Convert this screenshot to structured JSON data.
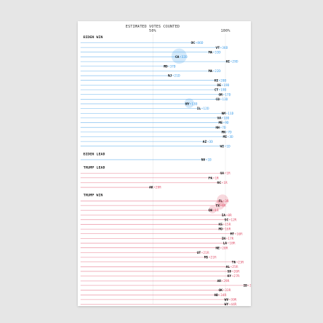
{
  "chart_data": {
    "type": "bar",
    "title": "ESTIMATED VOTES COUNTED",
    "x_ticks": [
      "50%",
      "100%"
    ],
    "xlim": [
      0,
      100
    ],
    "colors": {
      "dem": "#3a9be8",
      "rep": "#e0506a"
    },
    "groups": [
      {
        "label": "BIDEN WIN",
        "rows": [
          {
            "state": "DC",
            "margin": "+86D",
            "pct": 79,
            "party": "D",
            "bubble": 0
          },
          {
            "state": "VT",
            "margin": "+36D",
            "pct": 96,
            "party": "D",
            "bubble": 0
          },
          {
            "state": "MA",
            "margin": "+33D",
            "pct": 91,
            "party": "D",
            "bubble": 0
          },
          {
            "state": "CA",
            "margin": "+32D",
            "pct": 68,
            "party": "D",
            "bubble": 8
          },
          {
            "state": "HI",
            "margin": "+29D",
            "pct": 103,
            "party": "D",
            "bubble": 0
          },
          {
            "state": "MD",
            "margin": "+37D",
            "pct": 60,
            "party": "D",
            "bubble": 0
          },
          {
            "state": "MA",
            "margin": "+22D",
            "pct": 91,
            "party": "D",
            "bubble": 0
          },
          {
            "state": "NJ",
            "margin": "+21D",
            "pct": 63,
            "party": "D",
            "bubble": 0
          },
          {
            "state": "RI",
            "margin": "+20D",
            "pct": 95,
            "party": "D",
            "bubble": 0
          },
          {
            "state": "DE",
            "margin": "+19D",
            "pct": 97,
            "party": "D",
            "bubble": 0
          },
          {
            "state": "CT",
            "margin": "+19D",
            "pct": 95,
            "party": "D",
            "bubble": 0
          },
          {
            "state": "OR",
            "margin": "+17D",
            "pct": 98,
            "party": "D",
            "bubble": 0
          },
          {
            "state": "CO",
            "margin": "+13D",
            "pct": 96,
            "party": "D",
            "bubble": 0
          },
          {
            "state": "NY",
            "margin": "+13D",
            "pct": 75,
            "party": "D",
            "bubble": 5
          },
          {
            "state": "IL",
            "margin": "+12D",
            "pct": 83,
            "party": "D",
            "bubble": 0
          },
          {
            "state": "NM",
            "margin": "+11D",
            "pct": 100,
            "party": "D",
            "bubble": 0
          },
          {
            "state": "VA",
            "margin": "+10D",
            "pct": 97,
            "party": "D",
            "bubble": 0
          },
          {
            "state": "ME",
            "margin": "+9D",
            "pct": 98,
            "party": "D",
            "bubble": 0
          },
          {
            "state": "NH",
            "margin": "+7D",
            "pct": 96,
            "party": "D",
            "bubble": 0
          },
          {
            "state": "MN",
            "margin": "+7D",
            "pct": 100,
            "party": "D",
            "bubble": 0
          },
          {
            "state": "MI",
            "margin": "+3D",
            "pct": 101,
            "party": "D",
            "bubble": 0
          },
          {
            "state": "AZ",
            "margin": "+3D",
            "pct": 87,
            "party": "D",
            "bubble": 0
          },
          {
            "state": "WI",
            "margin": "+1D",
            "pct": 99,
            "party": "D",
            "bubble": 0
          }
        ]
      },
      {
        "label": "BIDEN LEAD",
        "rows": [
          {
            "state": "NV",
            "margin": "+1D",
            "pct": 86,
            "party": "D",
            "bubble": 0
          }
        ]
      },
      {
        "label": "TRUMP LEAD",
        "rows": [
          {
            "state": "GA",
            "margin": "+1R",
            "pct": 99,
            "party": "R",
            "bubble": 0
          },
          {
            "state": "PA",
            "margin": "+1R",
            "pct": 91,
            "party": "R",
            "bubble": 0
          },
          {
            "state": "NC",
            "margin": "+1R",
            "pct": 97,
            "party": "R",
            "bubble": 0
          },
          {
            "state": "AK",
            "margin": "+29R",
            "pct": 50,
            "party": "R",
            "bubble": 0
          }
        ]
      },
      {
        "label": "TRUMP WIN",
        "rows": [
          {
            "state": "FL",
            "margin": "+3R",
            "pct": 98,
            "party": "R",
            "bubble": 6
          },
          {
            "state": "TX",
            "margin": "+6R",
            "pct": 96,
            "party": "R",
            "bubble": 5
          },
          {
            "state": "OH",
            "margin": "+8R",
            "pct": 91,
            "party": "R",
            "bubble": 4
          },
          {
            "state": "IA",
            "margin": "+8R",
            "pct": 100,
            "party": "R",
            "bubble": 0
          },
          {
            "state": "SC",
            "margin": "+12R",
            "pct": 102,
            "party": "R",
            "bubble": 0
          },
          {
            "state": "KS",
            "margin": "+15R",
            "pct": 98,
            "party": "R",
            "bubble": 0
          },
          {
            "state": "MO",
            "margin": "+16R",
            "pct": 98,
            "party": "R",
            "bubble": 0
          },
          {
            "state": "MT",
            "margin": "+16R",
            "pct": 106,
            "party": "R",
            "bubble": 0
          },
          {
            "state": "IN",
            "margin": "+17R",
            "pct": 100,
            "party": "R",
            "bubble": 0
          },
          {
            "state": "LA",
            "margin": "+18R",
            "pct": 101,
            "party": "R",
            "bubble": 0
          },
          {
            "state": "NE",
            "margin": "+20R",
            "pct": 96,
            "party": "R",
            "bubble": 0
          },
          {
            "state": "UT",
            "margin": "+21R",
            "pct": 83,
            "party": "R",
            "bubble": 0
          },
          {
            "state": "MS",
            "margin": "+21R",
            "pct": 88,
            "party": "R",
            "bubble": 0
          },
          {
            "state": "TN",
            "margin": "+23R",
            "pct": 107,
            "party": "R",
            "bubble": 0
          },
          {
            "state": "AL",
            "margin": "+25R",
            "pct": 103,
            "party": "R",
            "bubble": 0
          },
          {
            "state": "SD",
            "margin": "+26R",
            "pct": 104,
            "party": "R",
            "bubble": 0
          },
          {
            "state": "KY",
            "margin": "+27R",
            "pct": 104,
            "party": "R",
            "bubble": 0
          },
          {
            "state": "AR",
            "margin": "+29R",
            "pct": 97,
            "party": "R",
            "bubble": 0
          },
          {
            "state": "ID",
            "margin": "+31R",
            "pct": 115,
            "party": "R",
            "bubble": 0
          },
          {
            "state": "OK",
            "margin": "+33R",
            "pct": 98,
            "party": "R",
            "bubble": 0
          },
          {
            "state": "ND",
            "margin": "+34R",
            "pct": 95,
            "party": "R",
            "bubble": 0
          },
          {
            "state": "WV",
            "margin": "+39R",
            "pct": 102,
            "party": "R",
            "bubble": 0
          },
          {
            "state": "WY",
            "margin": "+44R",
            "pct": 102,
            "party": "R",
            "bubble": 0
          }
        ]
      }
    ]
  }
}
